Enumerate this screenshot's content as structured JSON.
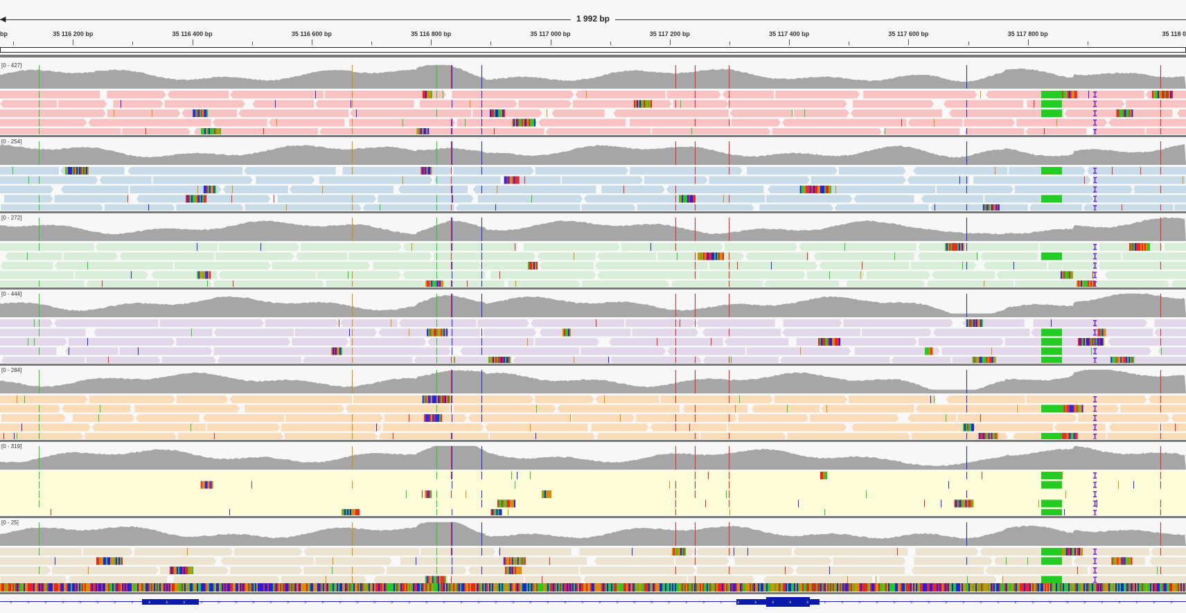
{
  "ruler": {
    "span_label": "1 992 bp",
    "left_edge_label": "bp",
    "right_edge_label": "35 118 0",
    "ticks": [
      {
        "label": "35 116 200 bp",
        "bp": 35116200
      },
      {
        "label": "35 116 400 bp",
        "bp": 35116400
      },
      {
        "label": "35 116 600 bp",
        "bp": 35116600
      },
      {
        "label": "35 116 800 bp",
        "bp": 35116800
      },
      {
        "label": "35 117 000 bp",
        "bp": 35117000
      },
      {
        "label": "35 117 200 bp",
        "bp": 35117200
      },
      {
        "label": "35 117 400 bp",
        "bp": 35117400
      },
      {
        "label": "35 117 600 bp",
        "bp": 35117600
      },
      {
        "label": "35 117 800 bp",
        "bp": 35117800
      }
    ]
  },
  "samples": [
    {
      "range": "[0 - 427]",
      "color": "#f9c3c3"
    },
    {
      "range": "[0 - 254]",
      "color": "#c8dbe9"
    },
    {
      "range": "[0 - 272]",
      "color": "#d9eed8"
    },
    {
      "range": "[0 - 444]",
      "color": "#e3d8ea"
    },
    {
      "range": "[0 - 284]",
      "color": "#fbdcb9"
    },
    {
      "range": "[0 - 319]",
      "color": "#fdfdd9"
    },
    {
      "range": "[0 - 25]",
      "color": "#ece3d1"
    }
  ],
  "colors": {
    "coverage": "#a6a6a6",
    "mismatch_A": "#22cc22",
    "mismatch_C": "#2020ee",
    "mismatch_G": "#d98c00",
    "mismatch_T": "#ee2222",
    "insertion": "#7a2fd0",
    "gene": "#0a1aa8"
  },
  "icons": {
    "span_arrow": "arrow-left-icon",
    "gene_strand": "strand-arrow-icon"
  }
}
